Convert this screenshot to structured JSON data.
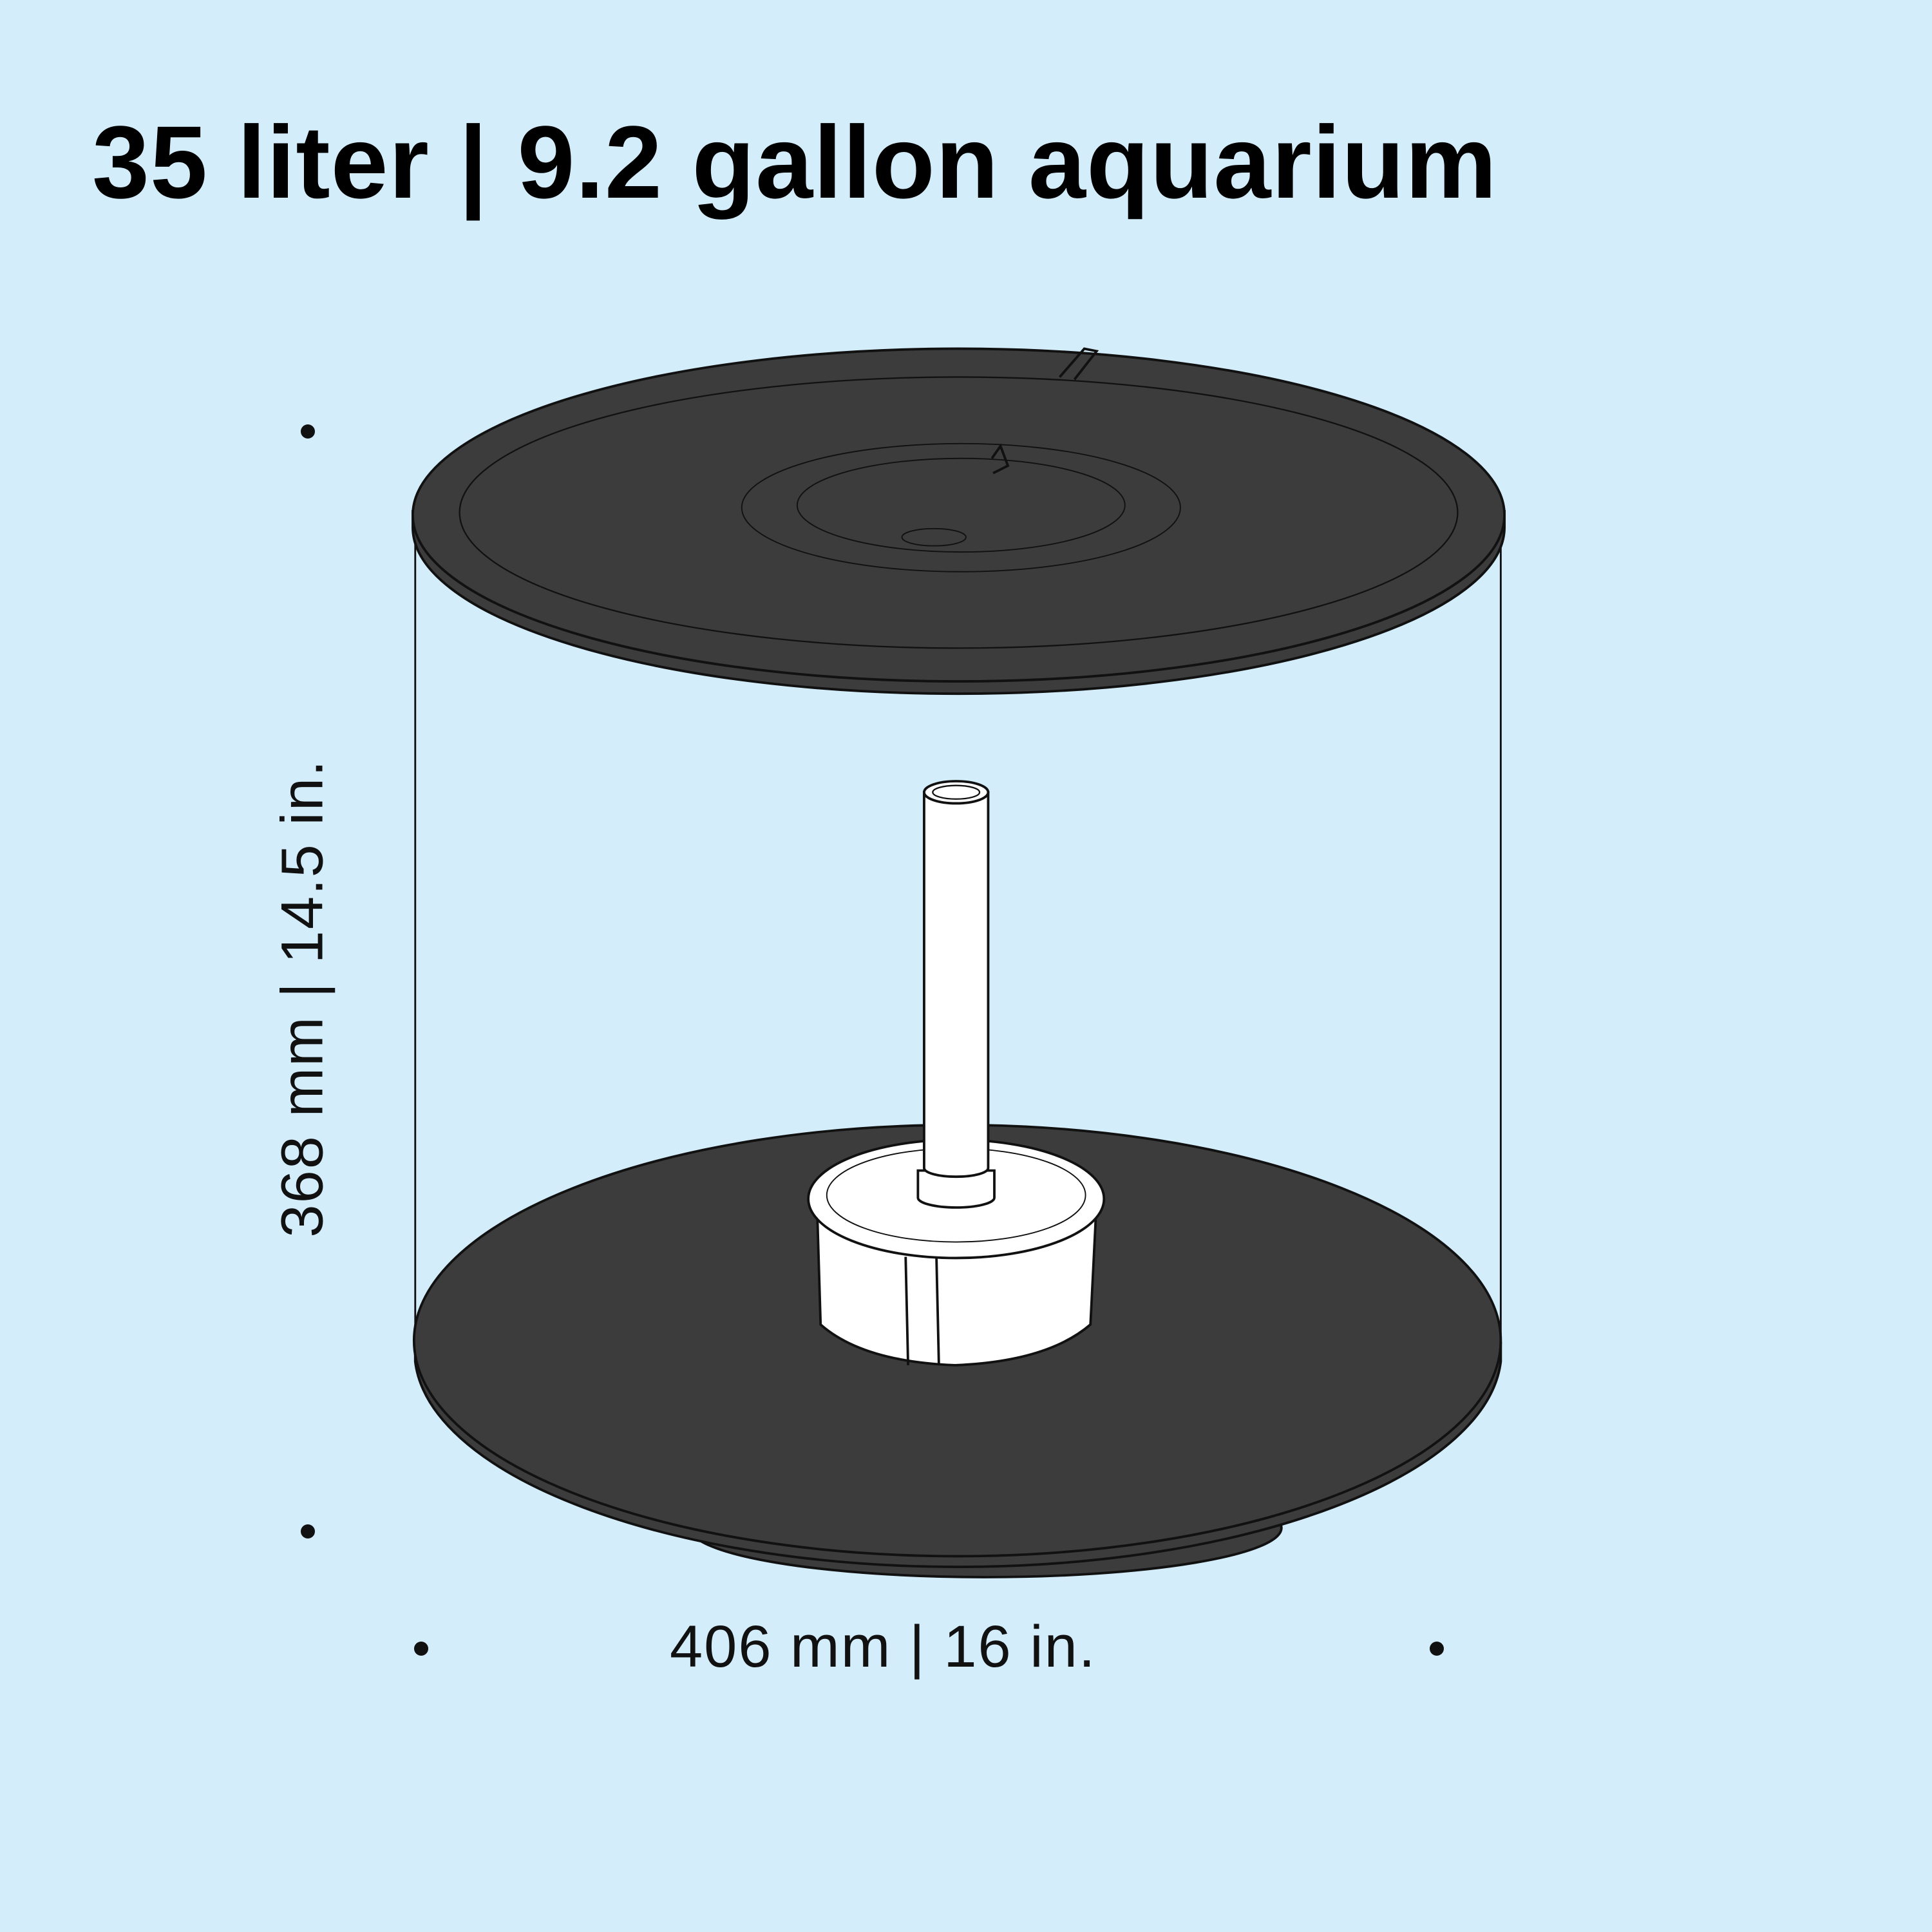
{
  "title": "35 liter | 9.2 gallon aquarium",
  "dimensions": {
    "height": "368 mm  |  14.5 in.",
    "width": "406 mm  |  16 in."
  },
  "colors": {
    "background": "#d3edfb",
    "lid_and_base": "#3c3c3c",
    "pump": "#ffffff",
    "outline": "#111111"
  }
}
